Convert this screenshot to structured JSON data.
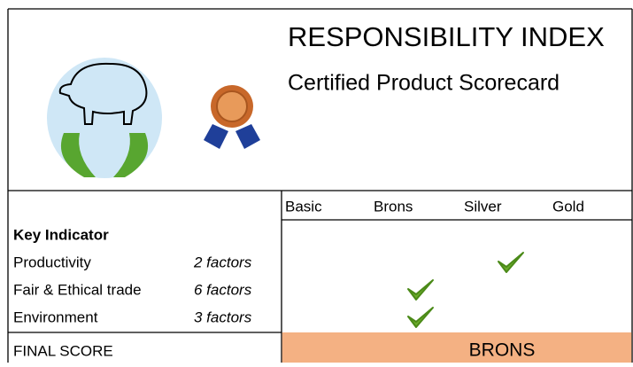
{
  "header": {
    "title": "RESPONSIBILITY INDEX",
    "subtitle": "Certified Product Scorecard"
  },
  "levels": [
    "Basic",
    "Brons",
    "Silver",
    "Gold"
  ],
  "table": {
    "heading": "Key Indicator",
    "rows": [
      {
        "label": "Productivity",
        "factors": "2 factors",
        "level": "Silver"
      },
      {
        "label": "Fair & Ethical trade",
        "factors": "6 factors",
        "level": "Brons"
      },
      {
        "label": "Environment",
        "factors": "3 factors",
        "level": "Brons"
      }
    ]
  },
  "final": {
    "label": "FINAL SCORE",
    "value": "BRONS"
  }
}
